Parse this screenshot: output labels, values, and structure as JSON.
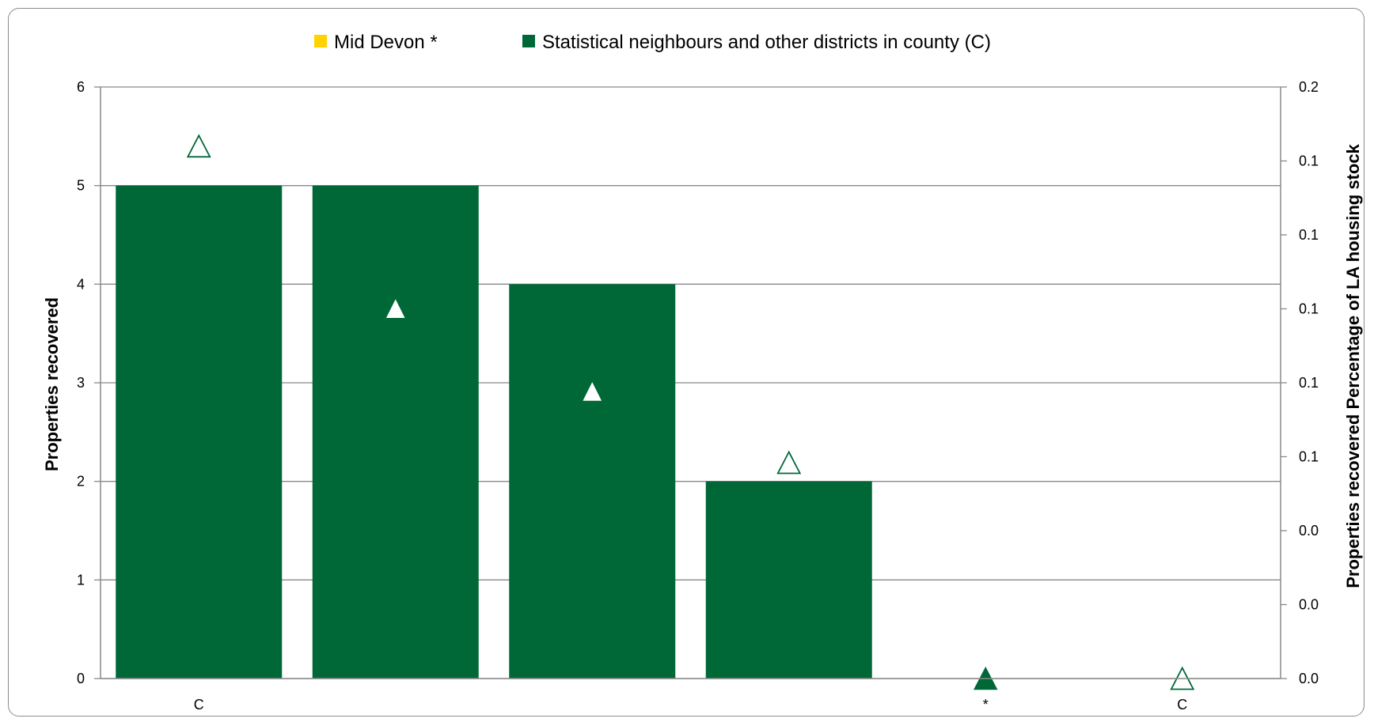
{
  "chart_data": {
    "type": "bar",
    "legend": {
      "placement": "top",
      "entries": [
        {
          "label": "Mid Devon *",
          "color": "#ffd200"
        },
        {
          "label": "Statistical neighbours and other districts in county (C)",
          "color": "#006837"
        }
      ]
    },
    "categories": [
      "C",
      "",
      "",
      "",
      "*",
      "C"
    ],
    "series": [
      {
        "name": "Properties recovered",
        "axis": "left",
        "kind": "bar",
        "values": [
          5,
          5,
          4,
          2,
          0,
          0
        ],
        "colors": [
          "#006837",
          "#006837",
          "#006837",
          "#006837",
          "#006837",
          "#006837"
        ]
      },
      {
        "name": "Percentage of LA housing stock",
        "axis": "right",
        "kind": "marker",
        "marker": "triangle",
        "values": [
          0.18,
          0.125,
          0.097,
          0.073,
          0.0,
          0.0
        ],
        "fill": [
          "hollow",
          "white",
          "white",
          "hollow",
          "solid",
          "hollow"
        ]
      }
    ],
    "ylabel": "Properties recovered",
    "y2label": "Properties recovered Percentage of LA housing stock",
    "ylim": [
      0,
      6
    ],
    "y_ticks": [
      "0",
      "1",
      "2",
      "3",
      "4",
      "5",
      "6"
    ],
    "y2lim": [
      0,
      0.2
    ],
    "y2_ticks": [
      "0.0",
      "0.0",
      "0.0",
      "0.1",
      "0.1",
      "0.1",
      "0.1",
      "0.1",
      "0.2"
    ],
    "grid": true,
    "colors": {
      "bar": "#006837",
      "grid": "#898989",
      "axis": "#898989"
    }
  }
}
